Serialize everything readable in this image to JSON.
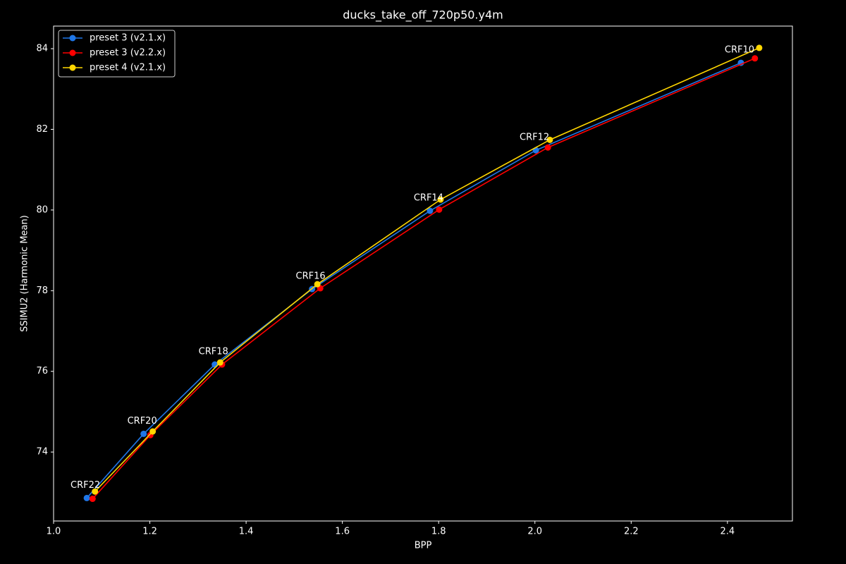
{
  "chart_data": {
    "type": "line",
    "title": "ducks_take_off_720p50.y4m",
    "x_label": "BPP",
    "y_label": "SSIMU2 (Harmonic Mean)",
    "xlim": [
      1.0,
      2.535
    ],
    "ylim": [
      72.29,
      84.56
    ],
    "xticks": [
      {
        "value": 1,
        "label": "1.0"
      },
      1.2,
      1.4,
      1.6,
      1.8,
      {
        "value": 2,
        "label": "2.0"
      },
      2.2,
      2.4
    ],
    "yticks": [
      74,
      76,
      78,
      80,
      82,
      84
    ],
    "grid": false,
    "legend": "upper-left",
    "annotations": [
      "CRF22",
      "CRF20",
      "CRF18",
      "CRF16",
      "CRF14",
      "CRF12",
      "CRF10"
    ],
    "series": [
      {
        "name": "preset 3 (v2.1.x)",
        "color": "#1f77e8",
        "x": [
          1.069,
          1.187,
          1.335,
          1.537,
          1.782,
          2.002,
          2.428
        ],
        "values": [
          72.86,
          74.45,
          76.17,
          78.04,
          79.98,
          81.48,
          83.65
        ]
      },
      {
        "name": "preset 3 (v2.2.x)",
        "color": "#ff0000",
        "x": [
          1.081,
          1.201,
          1.35,
          1.554,
          1.801,
          2.027,
          2.457
        ],
        "values": [
          72.84,
          74.42,
          76.17,
          78.06,
          80.01,
          81.55,
          83.76
        ]
      },
      {
        "name": "preset 4 (v2.1.x)",
        "color": "#ffd700",
        "x": [
          1.086,
          1.206,
          1.346,
          1.548,
          1.804,
          2.031,
          2.466
        ],
        "values": [
          73.02,
          74.51,
          76.22,
          78.16,
          80.26,
          81.74,
          84.02
        ]
      }
    ]
  }
}
